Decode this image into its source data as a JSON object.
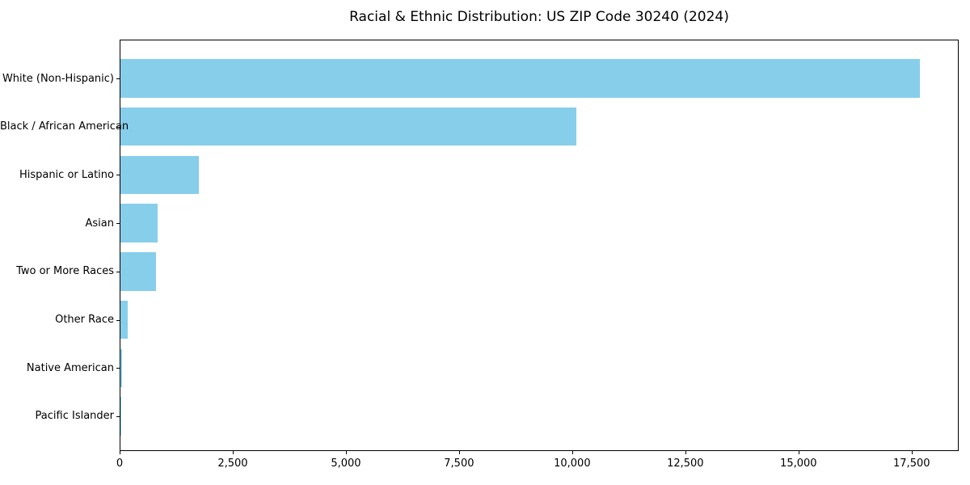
{
  "title": "Racial & Ethnic Distribution: US ZIP Code 30240 (2024)",
  "chart_data": {
    "type": "bar",
    "orientation": "horizontal",
    "title": "Racial & Ethnic Distribution: US ZIP Code 30240 (2024)",
    "xlabel": "",
    "ylabel": "",
    "categories": [
      "White (Non-Hispanic)",
      "Black / African American",
      "Hispanic or Latino",
      "Asian",
      "Two or More Races",
      "Other Race",
      "Native American",
      "Pacific Islander"
    ],
    "values": [
      17660,
      10070,
      1730,
      820,
      780,
      160,
      30,
      10
    ],
    "xlim": [
      0,
      18540
    ],
    "xticks": [
      0,
      2500,
      5000,
      7500,
      10000,
      12500,
      15000,
      17500
    ],
    "xtick_labels": [
      "0",
      "2,500",
      "5,000",
      "7,500",
      "10,000",
      "12,500",
      "15,000",
      "17,500"
    ],
    "grid": false,
    "legend": null,
    "bar_color": "#87CEEB",
    "axis_color": "#000000",
    "text_color": "#000000",
    "background_color": "#ffffff"
  }
}
